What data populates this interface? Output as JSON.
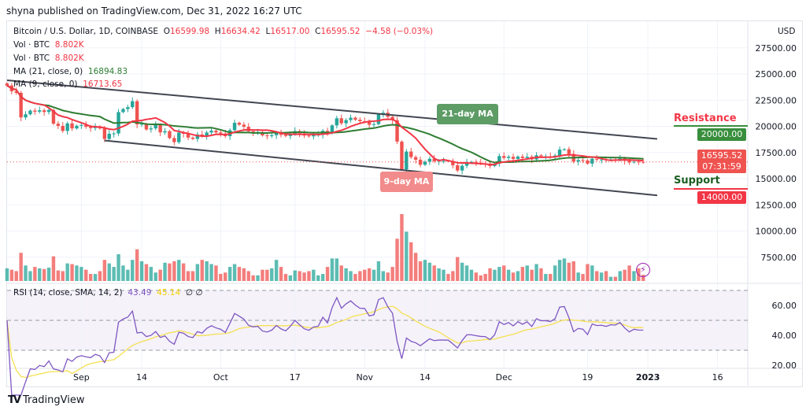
{
  "published": "shyna published on TradingView.com, Dec 31, 2022 16:27 UTC",
  "legend": {
    "symbol": "Bitcoin / U.S. Dollar, 1D, COINBASE",
    "o_label": "O",
    "o": "16599.98",
    "h_label": "H",
    "h": "16634.42",
    "l_label": "L",
    "l": "16517.00",
    "c_label": "C",
    "c": "16595.52",
    "change": "−4.58 (−0.03%)",
    "vol1_label": "Vol · BTC",
    "vol1": "8.802K",
    "vol2_label": "Vol · BTC",
    "vol2": "8.802K",
    "ma21_label": "MA (21, close, 0)",
    "ma21": "16894.83",
    "ma9_label": "MA (9, close, 0)",
    "ma9": "16713.65",
    "rsi_label": "RSI (14, close, SMA, 14, 2)",
    "rsi": "43.49",
    "rsi_ma": "45.14",
    "rsi_extra": "∅ ∅"
  },
  "currency": "USD",
  "price_ticks": [
    "27500.00",
    "25000.00",
    "22500.00",
    "20000.00",
    "17500.00",
    "15000.00",
    "12500.00",
    "10000.00",
    "7500.00"
  ],
  "price_tick_values": [
    27500,
    25000,
    22500,
    20000,
    17500,
    15000,
    12500,
    10000,
    7500
  ],
  "rsi_ticks": [
    "60.00",
    "40.00",
    "20.00"
  ],
  "rsi_tick_values": [
    60,
    40,
    20
  ],
  "time_ticks": [
    {
      "label": "Sep",
      "day": 16
    },
    {
      "label": "14",
      "day": 29
    },
    {
      "label": "Oct",
      "day": 46
    },
    {
      "label": "17",
      "day": 62
    },
    {
      "label": "Nov",
      "day": 77
    },
    {
      "label": "14",
      "day": 90
    },
    {
      "label": "Dec",
      "day": 107
    },
    {
      "label": "19",
      "day": 125
    },
    {
      "label": "2023",
      "day": 138,
      "bold": true
    },
    {
      "label": "16",
      "day": 153
    }
  ],
  "price_labels": {
    "resistance_value": "20000.00",
    "current_price": "16595.52",
    "countdown": "07:31:59",
    "support_value": "14000.00"
  },
  "annotations": {
    "resistance": "Resistance",
    "support": "Support",
    "ma21_note": "21-day MA",
    "ma9_note": "9-day MA"
  },
  "footer": {
    "brand": "TradingView"
  },
  "colors": {
    "up": "#26a69a",
    "down": "#ef5350",
    "ma21": "#2e7d32",
    "ma9": "#f23645",
    "rsi": "#7e57c2",
    "rsi_ma": "#f5e050",
    "resistance": "#388e3c",
    "support": "#f23645"
  },
  "chart_data": {
    "type": "candlestick",
    "interval": "1D",
    "first_date": "2022-08-16",
    "last_date": "2022-12-31",
    "ylim": [
      6000,
      28500
    ],
    "close": [
      23900,
      23350,
      23200,
      20850,
      21150,
      21500,
      21400,
      21530,
      21370,
      21570,
      20250,
      20040,
      19560,
      20280,
      19800,
      20050,
      20130,
      19950,
      19830,
      19990,
      19800,
      18790,
      19290,
      19320,
      21360,
      21650,
      21830,
      22400,
      20180,
      20240,
      19700,
      19800,
      20110,
      19420,
      19540,
      18880,
      18490,
      19400,
      19290,
      18920,
      18800,
      19220,
      19080,
      19410,
      19590,
      19420,
      19310,
      19060,
      19630,
      20340,
      20160,
      19960,
      19530,
      19420,
      19450,
      19130,
      19060,
      19150,
      19380,
      19180,
      19070,
      19270,
      19550,
      19330,
      19120,
      19040,
      19170,
      19200,
      19570,
      19330,
      20090,
      20770,
      20290,
      20600,
      20820,
      20630,
      20490,
      20480,
      20150,
      20210,
      21150,
      21300,
      20900,
      20590,
      18540,
      15880,
      17590,
      17060,
      16810,
      16330,
      16620,
      16900,
      16660,
      16700,
      16700,
      16690,
      16280,
      15780,
      16230,
      16600,
      16600,
      16520,
      16460,
      16440,
      16210,
      16440,
      17160,
      16980,
      17090,
      16890,
      17110,
      16970,
      17090,
      16840,
      17230,
      17130,
      17130,
      17090,
      17210,
      17780,
      17810,
      17360,
      16630,
      16780,
      16740,
      16440,
      16900,
      16820,
      16830,
      16780,
      16840,
      16830,
      16920,
      16710,
      16550,
      16630,
      16600,
      16595.52
    ],
    "volume_k": [
      18,
      16,
      14,
      40,
      22,
      14,
      20,
      18,
      17,
      19,
      35,
      15,
      14,
      25,
      24,
      22,
      20,
      16,
      10,
      10,
      14,
      30,
      25,
      20,
      38,
      22,
      16,
      30,
      45,
      28,
      24,
      20,
      12,
      16,
      26,
      25,
      28,
      30,
      25,
      14,
      14,
      24,
      30,
      28,
      24,
      22,
      10,
      12,
      20,
      24,
      20,
      18,
      14,
      8,
      8,
      16,
      16,
      18,
      30,
      20,
      10,
      8,
      15,
      14,
      12,
      14,
      16,
      8,
      10,
      20,
      32,
      32,
      22,
      18,
      14,
      10,
      14,
      16,
      18,
      16,
      28,
      14,
      12,
      20,
      60,
      95,
      70,
      55,
      40,
      28,
      30,
      26,
      22,
      18,
      16,
      10,
      14,
      34,
      26,
      22,
      16,
      12,
      8,
      10,
      18,
      16,
      20,
      22,
      16,
      12,
      14,
      20,
      22,
      16,
      24,
      18,
      10,
      10,
      22,
      30,
      32,
      26,
      28,
      12,
      10,
      24,
      22,
      14,
      12,
      14,
      6,
      6,
      14,
      16,
      22,
      14,
      18,
      8.8
    ],
    "ma_periods": [
      21,
      9
    ],
    "rsi": {
      "period": 14,
      "ma_period": 14,
      "bands": [
        70,
        50,
        30
      ]
    },
    "trendlines": [
      {
        "from": [
          "2022-08-16",
          24400
        ],
        "to": [
          "2023-01-03",
          18800
        ]
      },
      {
        "from": [
          "2022-09-06",
          18650
        ],
        "to": [
          "2023-01-03",
          13400
        ]
      }
    ],
    "levels": {
      "resistance": 20000,
      "support": 14000
    }
  }
}
